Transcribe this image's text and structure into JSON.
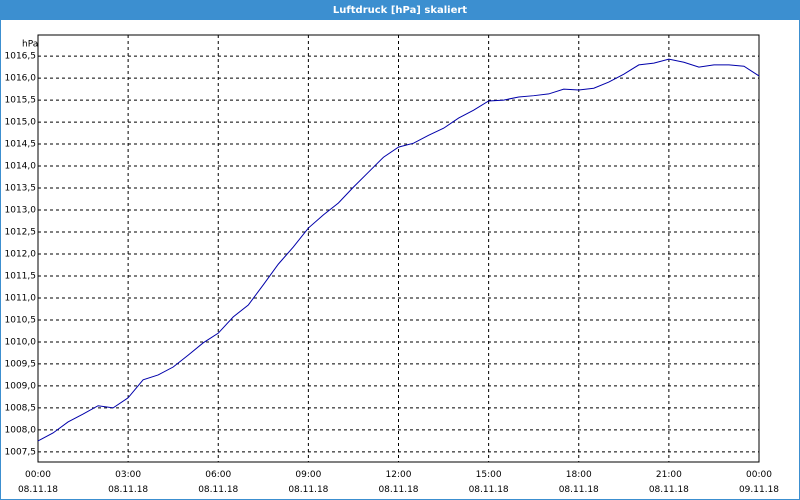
{
  "chart_data": {
    "type": "line",
    "title": "Luftdruck [hPa] skaliert",
    "y_label": "hPa",
    "x": [
      0,
      0.5,
      1,
      1.5,
      2,
      2.5,
      3,
      3.5,
      4,
      4.5,
      5,
      5.5,
      6,
      6.5,
      7,
      7.5,
      8,
      8.5,
      9,
      9.5,
      10,
      10.5,
      11,
      11.5,
      12,
      12.5,
      13,
      13.5,
      14,
      14.5,
      15,
      15.5,
      16,
      16.5,
      17,
      17.5,
      18,
      18.5,
      19,
      19.5,
      20,
      20.5,
      21,
      21.5,
      22,
      22.5,
      23,
      23.5,
      24
    ],
    "series": [
      {
        "name": "Luftdruck",
        "color": "#0000aa",
        "values": [
          1007.75,
          1007.93,
          1008.18,
          1008.36,
          1008.55,
          1008.5,
          1008.73,
          1009.14,
          1009.25,
          1009.43,
          1009.7,
          1009.98,
          1010.2,
          1010.57,
          1010.84,
          1011.3,
          1011.77,
          1012.16,
          1012.59,
          1012.89,
          1013.16,
          1013.52,
          1013.86,
          1014.2,
          1014.43,
          1014.52,
          1014.7,
          1014.86,
          1015.09,
          1015.27,
          1015.48,
          1015.5,
          1015.57,
          1015.6,
          1015.64,
          1015.75,
          1015.73,
          1015.77,
          1015.91,
          1016.09,
          1016.3,
          1016.34,
          1016.43,
          1016.36,
          1016.25,
          1016.3,
          1016.3,
          1016.27,
          1016.05
        ]
      }
    ],
    "xlim": [
      0,
      24
    ],
    "xticks": [
      {
        "value": 0,
        "label": "00:00 08.11.18"
      },
      {
        "value": 3,
        "label": "03:00 08.11.18"
      },
      {
        "value": 6,
        "label": "06:00 08.11.18"
      },
      {
        "value": 9,
        "label": "09:00 08.11.18"
      },
      {
        "value": 12,
        "label": "12:00 08.11.18"
      },
      {
        "value": 15,
        "label": "15:00 08.11.18"
      },
      {
        "value": 18,
        "label": "18:00 08.11.18"
      },
      {
        "value": 21,
        "label": "21:00 08.11.18"
      },
      {
        "value": 24,
        "label": "00:00 09.11.18"
      }
    ],
    "ylim": [
      1007.27,
      1016.98
    ],
    "yticks": [
      {
        "value": 1007.5,
        "label": "1007,5"
      },
      {
        "value": 1008,
        "label": "1008,0"
      },
      {
        "value": 1008.5,
        "label": "1008,5"
      },
      {
        "value": 1009,
        "label": "1009,0"
      },
      {
        "value": 1009.5,
        "label": "1009,5"
      },
      {
        "value": 1010,
        "label": "1010,0"
      },
      {
        "value": 1010.5,
        "label": "1010,5"
      },
      {
        "value": 1011,
        "label": "1011,0"
      },
      {
        "value": 1011.5,
        "label": "1011,5"
      },
      {
        "value": 1012,
        "label": "1012,0"
      },
      {
        "value": 1012.5,
        "label": "1012,5"
      },
      {
        "value": 1013,
        "label": "1013,0"
      },
      {
        "value": 1013.5,
        "label": "1013,5"
      },
      {
        "value": 1014,
        "label": "1014,0"
      },
      {
        "value": 1014.5,
        "label": "1014,5"
      },
      {
        "value": 1015,
        "label": "1015,0"
      },
      {
        "value": 1015.5,
        "label": "1015,5"
      },
      {
        "value": 1016,
        "label": "1016,0"
      },
      {
        "value": 1016.5,
        "label": "1016,5"
      }
    ],
    "grid": true
  }
}
